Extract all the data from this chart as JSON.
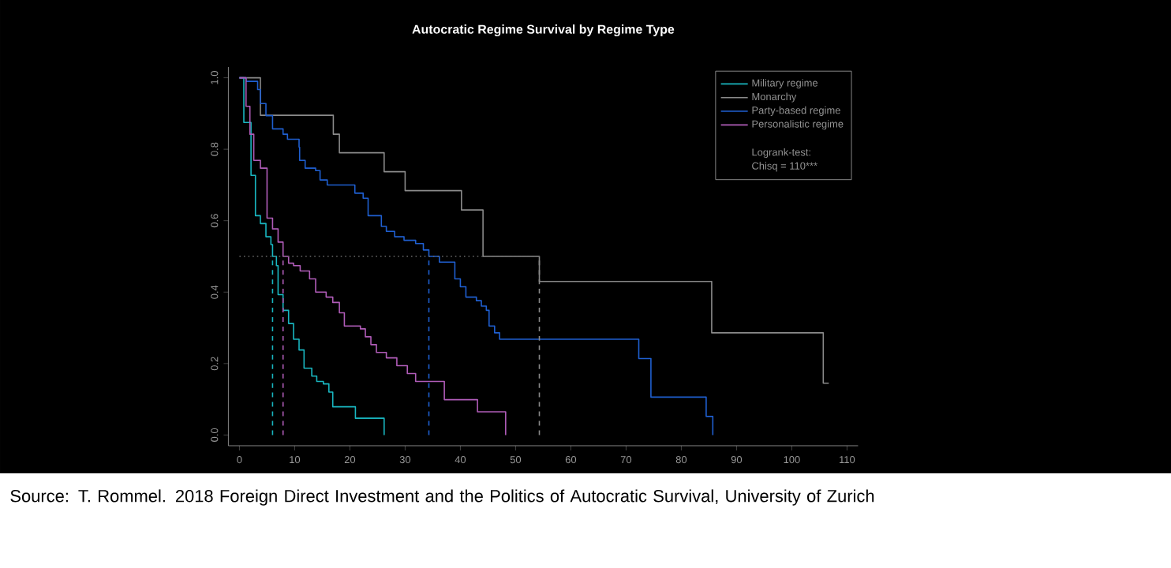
{
  "chart_data": {
    "type": "step",
    "title": "Autocratic Regime Survival by Regime Type",
    "xlim": [
      -2,
      112
    ],
    "ylim": [
      -0.03,
      1.03
    ],
    "xticks": [
      0,
      10,
      20,
      30,
      40,
      50,
      60,
      70,
      80,
      90,
      100,
      110
    ],
    "yticks": [
      {
        "value": 0,
        "label": "0.0"
      },
      {
        "value": 0.2,
        "label": "0.2"
      },
      {
        "value": 0.4,
        "label": "0.4"
      },
      {
        "value": 0.6,
        "label": "0.6"
      },
      {
        "value": 0.8,
        "label": "0.8"
      },
      {
        "value": 1,
        "label": "1.0"
      }
    ],
    "legend": "top right",
    "annotations": [
      "Logrank-test:",
      "Chisq = 110***",
      "Source: T. Rommel. 2018 Foreign Direct Investment and the Politics of Autocratic Survival, University of Zurich"
    ],
    "series": [
      {
        "name": "Military regime",
        "color": "#19b6c0",
        "x": [
          0,
          0.8,
          2.1,
          2.9,
          3.8,
          4.8,
          5.7,
          6,
          6.7,
          7,
          7.9,
          8.9,
          9.8,
          10.8,
          11.7,
          13.1,
          14,
          15.2,
          16.2,
          16.9,
          21,
          26.2
        ],
        "values": [
          1,
          0.875,
          0.727,
          0.614,
          0.592,
          0.555,
          0.533,
          0.5,
          0.474,
          0.393,
          0.349,
          0.312,
          0.268,
          0.238,
          0.187,
          0.165,
          0.15,
          0.143,
          0.12,
          0.079,
          0.047,
          0
        ]
      },
      {
        "name": "Monarchy",
        "color": "#8a8a8a",
        "x": [
          0,
          3.8,
          17,
          18.1,
          26.2,
          30,
          40.2,
          44.1,
          54.3,
          85.5,
          105.7,
          106.7
        ],
        "values": [
          1,
          0.895,
          0.842,
          0.79,
          0.737,
          0.684,
          0.63,
          0.5,
          0.43,
          0.286,
          0.145,
          0.145
        ]
      },
      {
        "name": "Party-based regime",
        "color": "#1f5fd0",
        "x": [
          0,
          1.2,
          3.3,
          3.8,
          4.8,
          6,
          7.9,
          8.7,
          10.8,
          10.9,
          11.9,
          13.8,
          14.6,
          15.9,
          20.9,
          22.4,
          23.3,
          25.7,
          26.6,
          28.1,
          29.8,
          31.9,
          33.3,
          34.3,
          36.2,
          39,
          40,
          41,
          42.9,
          43.8,
          44.7,
          45.2,
          46.2,
          47.1,
          72.3,
          74.5,
          84.5,
          85.7
        ],
        "values": [
          1,
          0.99,
          0.967,
          0.928,
          0.894,
          0.857,
          0.842,
          0.828,
          0.806,
          0.769,
          0.747,
          0.74,
          0.714,
          0.7,
          0.677,
          0.663,
          0.614,
          0.584,
          0.57,
          0.555,
          0.545,
          0.536,
          0.518,
          0.5,
          0.484,
          0.437,
          0.415,
          0.386,
          0.376,
          0.361,
          0.349,
          0.305,
          0.286,
          0.268,
          0.214,
          0.106,
          0.052,
          0
        ]
      },
      {
        "name": "Personalistic regime",
        "color": "#b05cb8",
        "x": [
          0,
          1.2,
          1.9,
          2.6,
          3.8,
          5,
          6,
          7,
          7.9,
          8.9,
          9.8,
          11,
          12.7,
          13.8,
          15.7,
          16.9,
          18.1,
          19,
          21.9,
          22.8,
          23.8,
          24.8,
          26.6,
          28.5,
          30.4,
          31.9,
          37.1,
          43.1,
          48.2
        ],
        "values": [
          1,
          0.92,
          0.842,
          0.769,
          0.747,
          0.607,
          0.577,
          0.54,
          0.5,
          0.481,
          0.474,
          0.459,
          0.437,
          0.4,
          0.386,
          0.371,
          0.342,
          0.305,
          0.297,
          0.275,
          0.253,
          0.231,
          0.216,
          0.194,
          0.172,
          0.15,
          0.099,
          0.065,
          0
        ]
      },
      {
        "type": "line",
        "line_style": "dotted",
        "color": "#666666",
        "x": [
          0,
          54.3
        ],
        "values": [
          0.5,
          0.5
        ]
      },
      {
        "type": "line",
        "line_style": "dashed",
        "color": "#19b6c0",
        "x": [
          6,
          6
        ],
        "values": [
          0,
          0.5
        ]
      },
      {
        "type": "line",
        "line_style": "dashed",
        "color": "#b05cb8",
        "x": [
          7.9,
          7.9
        ],
        "values": [
          0,
          0.5
        ]
      },
      {
        "type": "line",
        "line_style": "dashed",
        "color": "#1f5fd0",
        "x": [
          34.3,
          34.3
        ],
        "values": [
          0,
          0.5
        ]
      },
      {
        "type": "line",
        "line_style": "dashed",
        "color": "#8a8a8a",
        "x": [
          54.3,
          54.3
        ],
        "values": [
          0,
          0.5
        ]
      }
    ]
  }
}
